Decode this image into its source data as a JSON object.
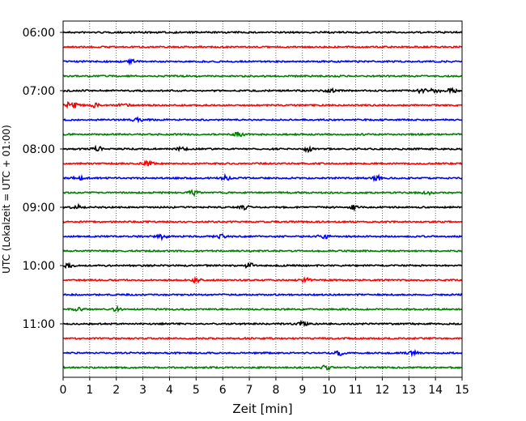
{
  "chart_data": {
    "type": "line",
    "title": "",
    "xlabel": "Zeit  [min]",
    "ylabel": "UTC (Lokalzeit = UTC + 01:00)",
    "xlim": [
      0,
      15
    ],
    "x_ticks": [
      0,
      1,
      2,
      3,
      4,
      5,
      6,
      7,
      8,
      9,
      10,
      11,
      12,
      13,
      14,
      15
    ],
    "y_ticks": [
      "06:00",
      "07:00",
      "08:00",
      "09:00",
      "10:00",
      "11:00"
    ],
    "grid": "vertical dotted",
    "trace_colors": [
      "#000000",
      "#ff0000",
      "#0000ff",
      "#008000"
    ],
    "traces": [
      {
        "time": "06:00",
        "color": "#000000",
        "bursts": []
      },
      {
        "time": "06:15",
        "color": "#ff0000",
        "bursts": []
      },
      {
        "time": "06:30",
        "color": "#0000ff",
        "bursts": [
          2.6
        ]
      },
      {
        "time": "06:45",
        "color": "#008000",
        "bursts": []
      },
      {
        "time": "07:00",
        "color": "#000000",
        "bursts": [
          10.0,
          13.5,
          14.0,
          14.6
        ]
      },
      {
        "time": "07:15",
        "color": "#ff0000",
        "bursts": [
          0.2,
          0.5,
          1.2,
          2.3
        ]
      },
      {
        "time": "07:30",
        "color": "#0000ff",
        "bursts": [
          2.8
        ]
      },
      {
        "time": "07:45",
        "color": "#008000",
        "bursts": [
          6.6
        ]
      },
      {
        "time": "08:00",
        "color": "#000000",
        "bursts": [
          1.3,
          4.5,
          9.2
        ]
      },
      {
        "time": "08:15",
        "color": "#ff0000",
        "bursts": [
          3.2
        ]
      },
      {
        "time": "08:30",
        "color": "#0000ff",
        "bursts": [
          0.6,
          6.1,
          11.8
        ]
      },
      {
        "time": "08:45",
        "color": "#008000",
        "bursts": [
          4.9,
          13.7
        ]
      },
      {
        "time": "09:00",
        "color": "#000000",
        "bursts": [
          0.5,
          6.8,
          10.9
        ]
      },
      {
        "time": "09:15",
        "color": "#ff0000",
        "bursts": []
      },
      {
        "time": "09:30",
        "color": "#0000ff",
        "bursts": [
          3.7,
          5.9,
          9.8
        ]
      },
      {
        "time": "09:45",
        "color": "#008000",
        "bursts": []
      },
      {
        "time": "10:00",
        "color": "#000000",
        "bursts": [
          0.2,
          7.0
        ]
      },
      {
        "time": "10:15",
        "color": "#ff0000",
        "bursts": [
          5.0,
          9.1
        ]
      },
      {
        "time": "10:30",
        "color": "#0000ff",
        "bursts": []
      },
      {
        "time": "10:45",
        "color": "#008000",
        "bursts": [
          0.6,
          2.0
        ]
      },
      {
        "time": "11:00",
        "color": "#000000",
        "bursts": [
          9.0
        ]
      },
      {
        "time": "11:15",
        "color": "#ff0000",
        "bursts": []
      },
      {
        "time": "11:30",
        "color": "#0000ff",
        "bursts": [
          10.4,
          13.1
        ]
      },
      {
        "time": "11:45",
        "color": "#008000",
        "bursts": [
          9.9
        ]
      }
    ]
  }
}
